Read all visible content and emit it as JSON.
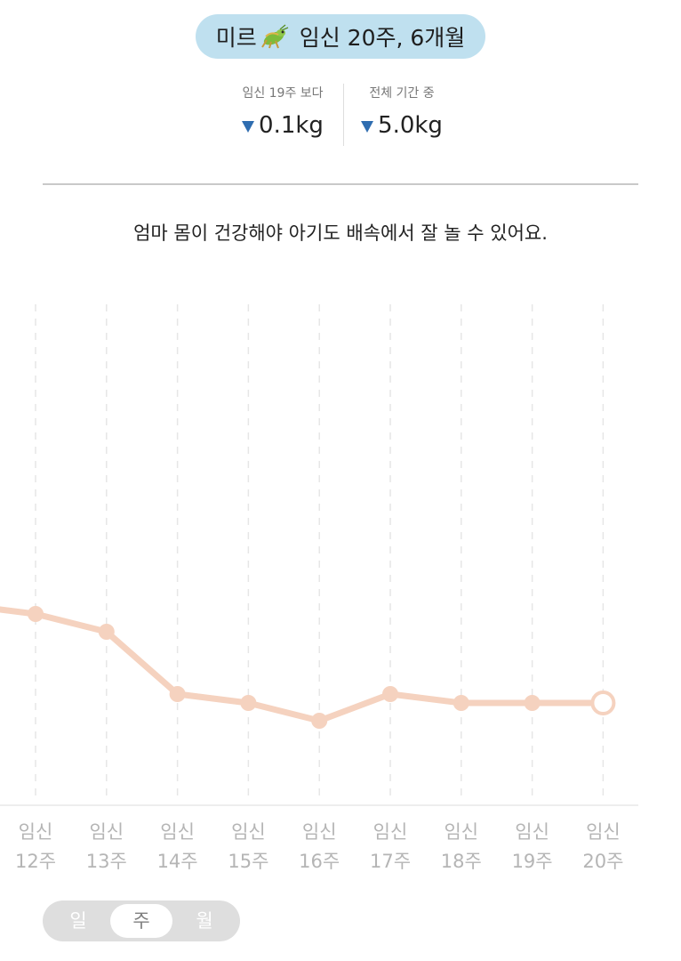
{
  "header": {
    "baby_name": "미르",
    "baby_icon": "grasshopper-icon",
    "title": "임신 20주, 6개월"
  },
  "stats": {
    "compare_prev_label": "임신 19주 보다",
    "compare_prev_value": "0.1kg",
    "compare_total_label": "전체 기간 중",
    "compare_total_value": "5.0kg",
    "direction_color": "#2f6db0"
  },
  "message": "엄마 몸이 건강해야 아기도 배속에서 잘 놀 수 있어요.",
  "chart_data": {
    "type": "line",
    "categories": [
      [
        "임신",
        "12주"
      ],
      [
        "임신",
        "13주"
      ],
      [
        "임신",
        "14주"
      ],
      [
        "임신",
        "15주"
      ],
      [
        "임신",
        "16주"
      ],
      [
        "임신",
        "17주"
      ],
      [
        "임신",
        "18주"
      ],
      [
        "임신",
        "19주"
      ],
      [
        "임신",
        "20주"
      ]
    ],
    "series": [
      {
        "values": [
          -0.5,
          -0.7,
          -1.4,
          -1.5,
          -1.7,
          -1.4,
          -1.5,
          -1.5,
          -1.5
        ],
        "color": "#f5d2bf"
      }
    ],
    "note_leading_value": -0.45,
    "grid": "vertical dashed",
    "current_marker": "hollow-circle on last point"
  },
  "period_toggle": {
    "options": [
      "일",
      "주",
      "월"
    ],
    "selected": "주"
  }
}
